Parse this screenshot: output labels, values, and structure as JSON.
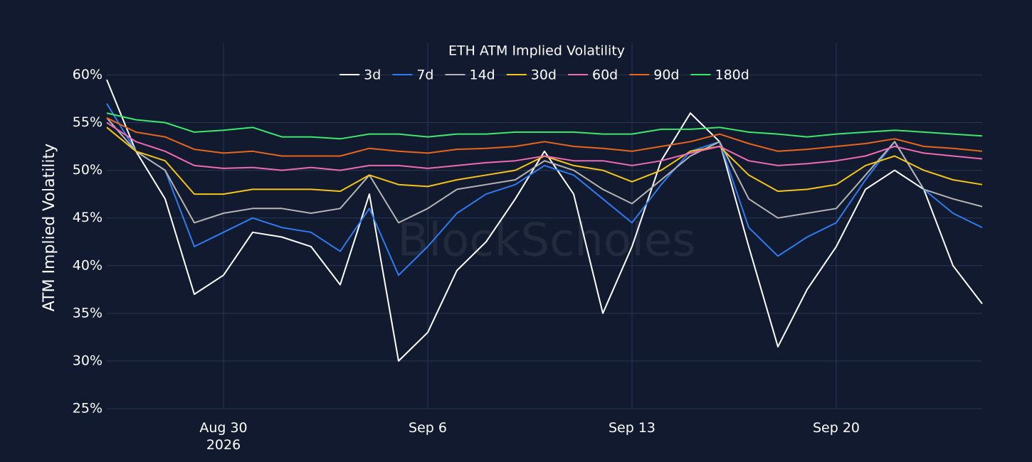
{
  "chart_data": {
    "type": "line",
    "title": "ETH ATM Implied Volatility",
    "y_label": "ATM Implied Volatility",
    "watermark": "BlockScholes",
    "x": [
      "2026-08-26",
      "2026-08-27",
      "2026-08-28",
      "2026-08-29",
      "2026-08-30",
      "2026-08-31",
      "2026-09-01",
      "2026-09-02",
      "2026-09-03",
      "2026-09-04",
      "2026-09-05",
      "2026-09-06",
      "2026-09-07",
      "2026-09-08",
      "2026-09-09",
      "2026-09-10",
      "2026-09-11",
      "2026-09-12",
      "2026-09-13",
      "2026-09-14",
      "2026-09-15",
      "2026-09-16",
      "2026-09-17",
      "2026-09-18",
      "2026-09-19",
      "2026-09-20",
      "2026-09-21",
      "2026-09-22",
      "2026-09-23",
      "2026-09-24",
      "2026-09-25"
    ],
    "xlim": [
      "2026-08-26",
      "2026-09-25"
    ],
    "xticks": [
      {
        "value": "2026-08-30",
        "label": "Aug 30\n2026"
      },
      {
        "value": "2026-09-06",
        "label": "Sep 6"
      },
      {
        "value": "2026-09-13",
        "label": "Sep 13"
      },
      {
        "value": "2026-09-20",
        "label": "Sep 20"
      }
    ],
    "ylim": [
      25,
      61
    ],
    "yticks": [
      {
        "value": 25,
        "label": "25%"
      },
      {
        "value": 30,
        "label": "30%"
      },
      {
        "value": 35,
        "label": "35%"
      },
      {
        "value": 40,
        "label": "40%"
      },
      {
        "value": 45,
        "label": "45%"
      },
      {
        "value": 50,
        "label": "50%"
      },
      {
        "value": 55,
        "label": "55%"
      },
      {
        "value": 60,
        "label": "60%"
      }
    ],
    "grid": true,
    "legend": "top",
    "series": [
      {
        "name": "3d",
        "color": "#ffffff",
        "values": [
          59.5,
          52,
          47,
          37,
          39,
          43.5,
          43,
          42,
          38,
          47.5,
          30,
          33,
          39.5,
          42.5,
          47,
          52,
          47.5,
          35,
          42,
          51,
          56,
          53,
          42,
          31.5,
          37.5,
          42,
          48,
          50,
          48,
          40,
          36
        ]
      },
      {
        "name": "7d",
        "color": "#2f7bf0",
        "values": [
          57,
          52,
          50,
          42,
          43.5,
          45,
          44,
          43.5,
          41.5,
          46,
          39,
          42,
          45.5,
          47.5,
          48.5,
          50.5,
          49.5,
          47,
          44.5,
          48.5,
          52,
          53,
          44,
          41,
          43,
          44.5,
          49,
          53,
          48,
          45.5,
          44
        ]
      },
      {
        "name": "14d",
        "color": "#b5b5b5",
        "values": [
          55.5,
          52,
          50,
          44.5,
          45.5,
          46,
          46,
          45.5,
          46,
          49.5,
          44.5,
          46,
          48,
          48.5,
          49,
          51,
          50,
          48,
          46.5,
          49,
          51.5,
          53,
          47,
          45,
          45.5,
          46,
          49.5,
          53,
          48,
          47,
          46.2
        ]
      },
      {
        "name": "30d",
        "color": "#f5c518",
        "values": [
          54.5,
          52,
          51,
          47.5,
          47.5,
          48,
          48,
          48,
          47.8,
          49.5,
          48.5,
          48.3,
          49,
          49.5,
          50,
          51.5,
          50.5,
          50,
          48.8,
          50,
          52,
          52.5,
          49.5,
          47.8,
          48,
          48.5,
          50.5,
          51.5,
          50,
          49,
          48.5
        ]
      },
      {
        "name": "60d",
        "color": "#f06bb4",
        "values": [
          55,
          53,
          52,
          50.5,
          50.2,
          50.3,
          50,
          50.3,
          50,
          50.5,
          50.5,
          50.2,
          50.5,
          50.8,
          51,
          51.5,
          51,
          51,
          50.5,
          51,
          51.8,
          52.5,
          51,
          50.5,
          50.7,
          51,
          51.5,
          52.5,
          51.8,
          51.5,
          51.2
        ]
      },
      {
        "name": "90d",
        "color": "#e8651c",
        "values": [
          55.5,
          54,
          53.5,
          52.2,
          51.8,
          52,
          51.5,
          51.5,
          51.5,
          52.3,
          52,
          51.8,
          52.2,
          52.3,
          52.5,
          53,
          52.5,
          52.3,
          52,
          52.5,
          53,
          53.8,
          52.8,
          52,
          52.2,
          52.5,
          52.8,
          53.3,
          52.5,
          52.3,
          52
        ]
      },
      {
        "name": "180d",
        "color": "#3ee86a",
        "values": [
          56,
          55.3,
          55,
          54,
          54.2,
          54.5,
          53.5,
          53.5,
          53.3,
          53.8,
          53.8,
          53.5,
          53.8,
          53.8,
          54,
          54,
          54,
          53.8,
          53.8,
          54.3,
          54.3,
          54.5,
          54,
          53.8,
          53.5,
          53.8,
          54,
          54.2,
          54,
          53.8,
          53.6
        ]
      }
    ]
  }
}
